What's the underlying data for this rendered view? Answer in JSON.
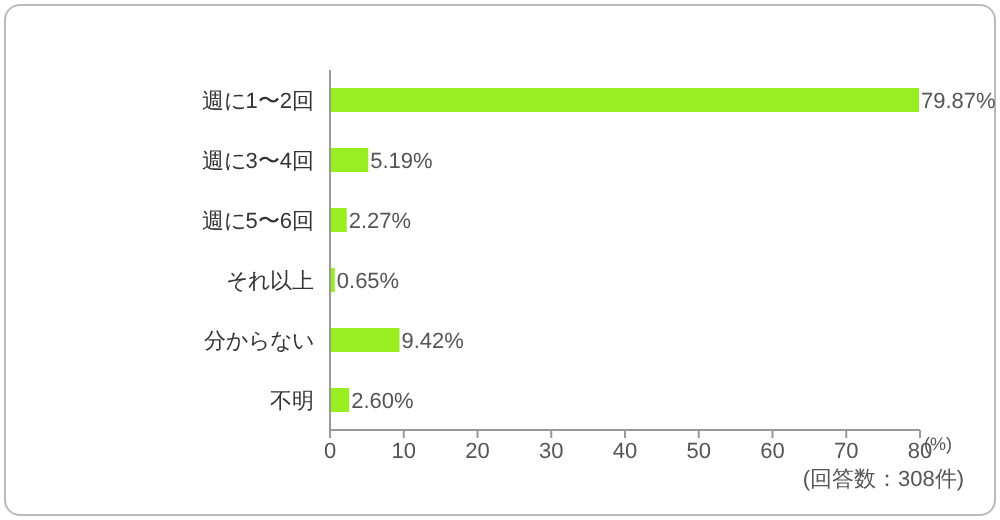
{
  "chart_data": {
    "type": "bar",
    "orientation": "horizontal",
    "categories": [
      "週に1〜2回",
      "週に3〜4回",
      "週に5〜6回",
      "それ以上",
      "分からない",
      "不明"
    ],
    "values": [
      79.87,
      5.19,
      2.27,
      0.65,
      9.42,
      2.6
    ],
    "value_labels": [
      "79.87%",
      "5.19%",
      "2.27%",
      "0.65%",
      "9.42%",
      "2.60%"
    ],
    "color": "#99ee22",
    "xlim": [
      0,
      80
    ],
    "xticks": [
      0,
      10,
      20,
      30,
      40,
      50,
      60,
      70,
      80
    ],
    "xlabel": "(%)",
    "annotations": [
      "(回答数：308件)"
    ],
    "grid": false
  }
}
